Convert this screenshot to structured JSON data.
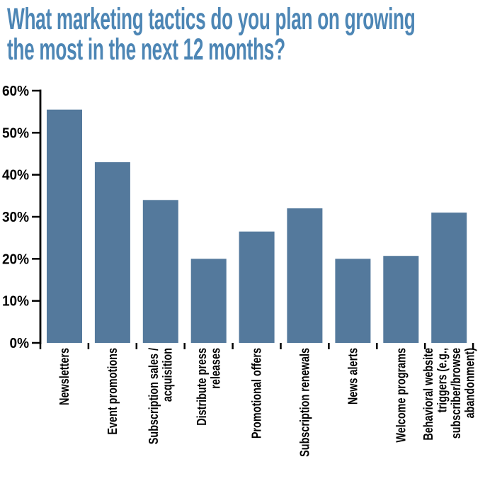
{
  "title": {
    "lines": [
      "What marketing tactics do you plan on growing",
      "the most in the next 12 months?"
    ],
    "color": "#4d86b5"
  },
  "chart_data": {
    "type": "bar",
    "title": "What marketing tactics do you plan on growing the most in the next 12 months?",
    "categories": [
      "Newsletters",
      "Event promotions",
      "Subscription sales / acquisition",
      "Distribute press releases",
      "Promotional offers",
      "Subscription renewals",
      "News alerts",
      "Welcome programs",
      "Behavioral website triggers (e.g., subscriber/browse abandonment)"
    ],
    "category_label_lines": [
      [
        "Newsletters"
      ],
      [
        "Event promotions"
      ],
      [
        "Subscription sales /",
        "acquisition"
      ],
      [
        "Distribute press",
        "releases"
      ],
      [
        "Promotional offers"
      ],
      [
        "Subscription renewals"
      ],
      [
        "News alerts"
      ],
      [
        "Welcome programs"
      ],
      [
        "Behavioral website",
        "triggers (e.g.,",
        "subscriber/browse",
        "abandonment)"
      ]
    ],
    "values": [
      55.5,
      43,
      34,
      20,
      26.5,
      32,
      20,
      20.7,
      31
    ],
    "unit": "%",
    "xlabel": "",
    "ylabel": "",
    "ylim": [
      0,
      60
    ],
    "ytick_step": 10,
    "ytick_labels": [
      "0%",
      "10%",
      "20%",
      "30%",
      "40%",
      "50%",
      "60%"
    ],
    "grid": false,
    "legend": null,
    "bar_color": "#54799c",
    "axis_color": "#000000",
    "tick_label_color": "#000000"
  }
}
